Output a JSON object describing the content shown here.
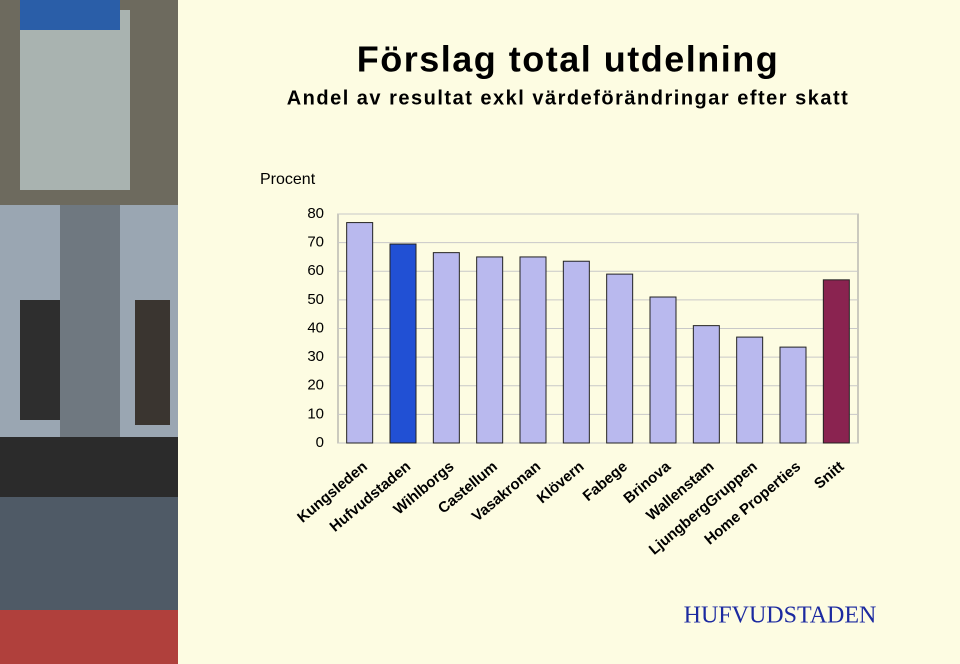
{
  "chart_data": {
    "type": "bar",
    "title": "Förslag total utdelning",
    "subtitle": "Andel av resultat exkl värdeförändringar efter skatt",
    "y_label": "Procent",
    "categories": [
      "Kungsleden",
      "Hufvudstaden",
      "Wihlborgs",
      "Castellum",
      "Vasakronan",
      "Klövern",
      "Fabege",
      "Brinova",
      "Wallenstam",
      "LjungbergGruppen",
      "Home Properties",
      "Snitt"
    ],
    "values": [
      77,
      69.5,
      66.5,
      65,
      65,
      63.5,
      59,
      51,
      41,
      37,
      33.5,
      57
    ],
    "colors": [
      "#b9b9ee",
      "#2150d4",
      "#b9b9ee",
      "#b9b9ee",
      "#b9b9ee",
      "#b9b9ee",
      "#b9b9ee",
      "#b9b9ee",
      "#b9b9ee",
      "#b9b9ee",
      "#b9b9ee",
      "#8a2350"
    ],
    "ylim": [
      0,
      80
    ],
    "yticks": [
      0,
      10,
      20,
      30,
      40,
      50,
      60,
      70,
      80
    ],
    "grid": true
  },
  "logo": "HUFVUDSTADEN"
}
